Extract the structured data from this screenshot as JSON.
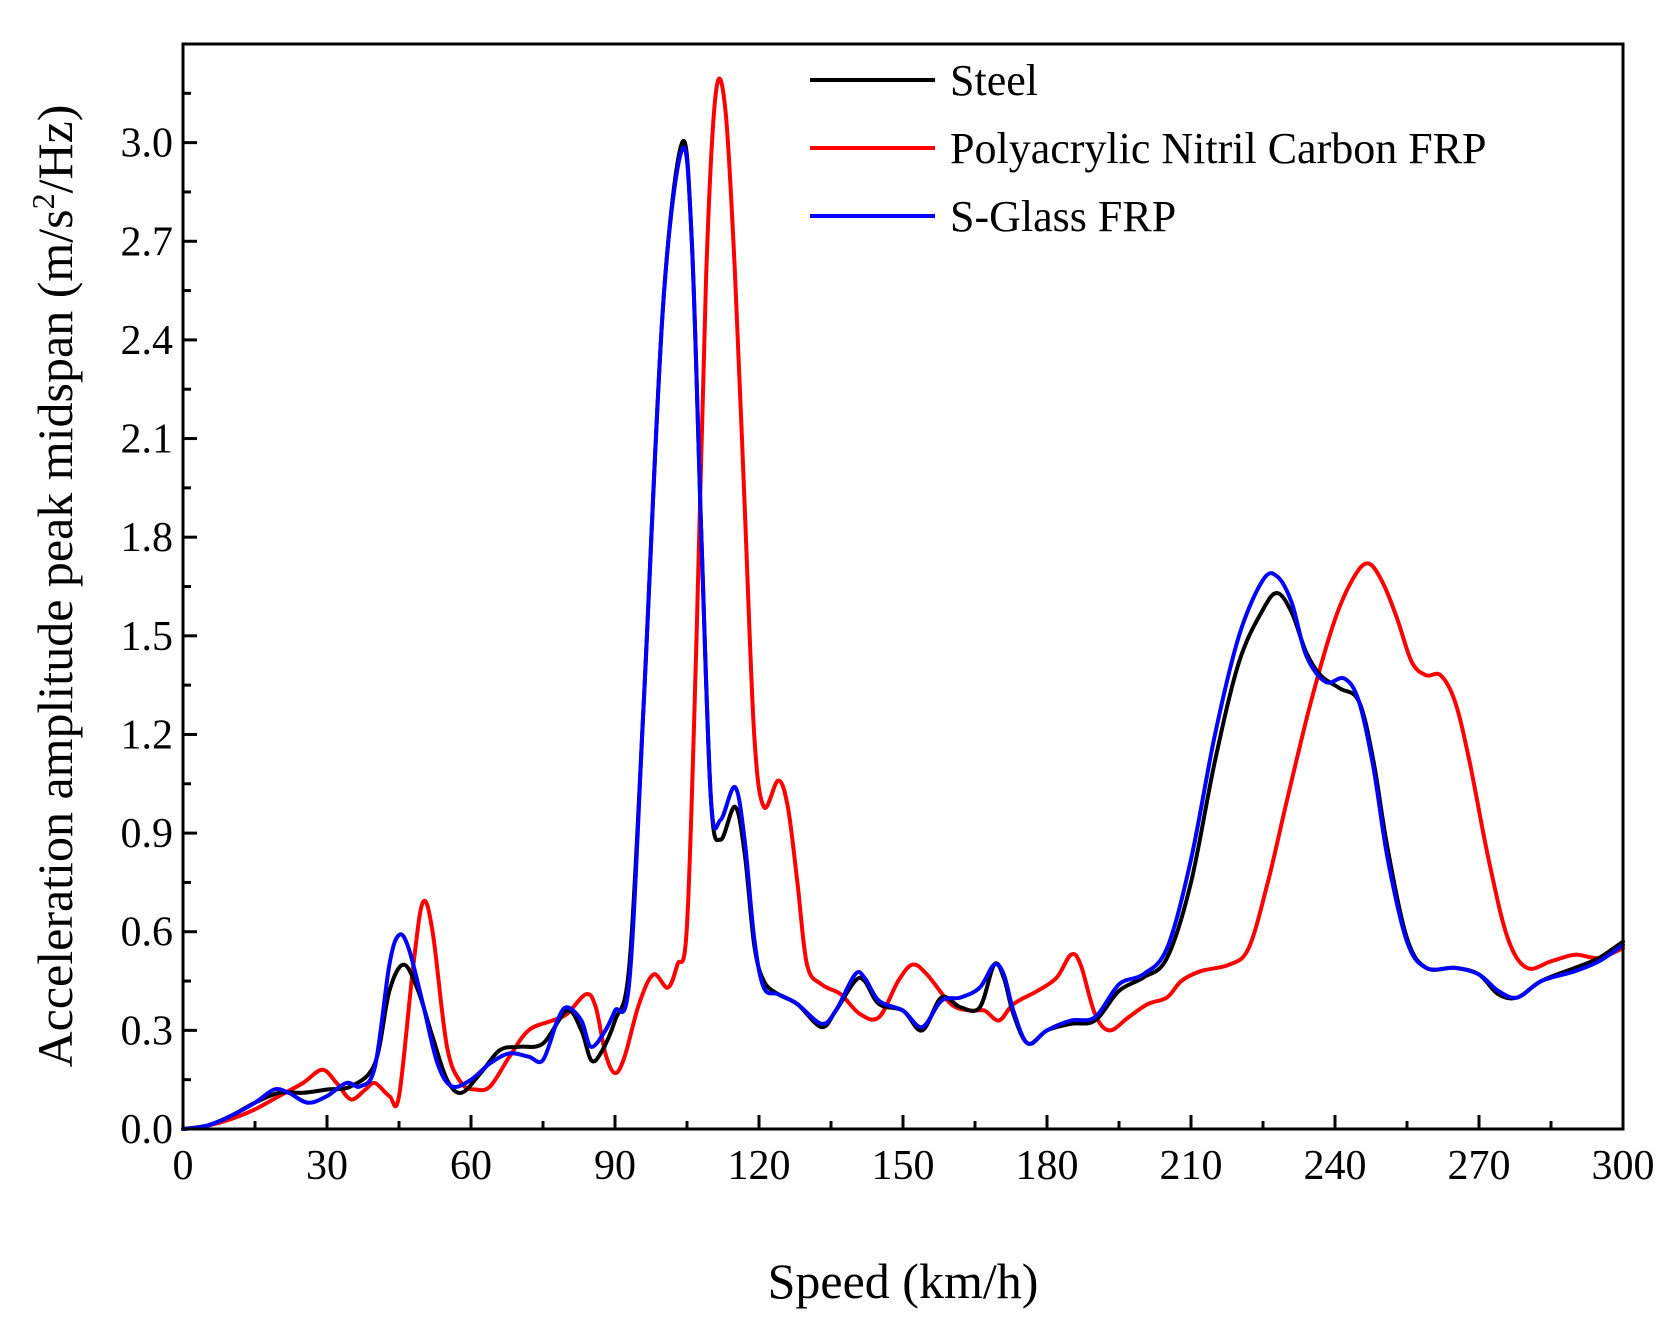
{
  "chart_data": {
    "type": "line",
    "title": "",
    "xlabel": "Speed (km/h)",
    "ylabel_parts": {
      "before": "Acceleration amplitude peak midspan (m/s",
      "sup": "2",
      "after": "/Hz)"
    },
    "xlim": [
      0,
      300
    ],
    "ylim": [
      0,
      3.3
    ],
    "x_ticks": [
      0,
      30,
      60,
      90,
      120,
      150,
      180,
      210,
      240,
      270,
      300
    ],
    "x_tick_labels": [
      "0",
      "30",
      "60",
      "90",
      "120",
      "150",
      "180",
      "210",
      "240",
      "270",
      "300"
    ],
    "y_ticks": [
      0,
      0.3,
      0.6,
      0.9,
      1.2,
      1.5,
      1.8,
      2.1,
      2.4,
      2.7,
      3.0
    ],
    "y_tick_labels": [
      "0.0",
      "0.3",
      "0.6",
      "0.9",
      "1.2",
      "1.5",
      "1.8",
      "2.1",
      "2.4",
      "2.7",
      "3.0"
    ],
    "grid": false,
    "legend_position": "top-right",
    "series": [
      {
        "name": "Steel",
        "color": "#000000",
        "points": [
          [
            0,
            0
          ],
          [
            5,
            0.01
          ],
          [
            10,
            0.04
          ],
          [
            15,
            0.08
          ],
          [
            20,
            0.11
          ],
          [
            25,
            0.11
          ],
          [
            30,
            0.12
          ],
          [
            35,
            0.13
          ],
          [
            40,
            0.2
          ],
          [
            43,
            0.42
          ],
          [
            46,
            0.5
          ],
          [
            49,
            0.42
          ],
          [
            52,
            0.28
          ],
          [
            55,
            0.15
          ],
          [
            58,
            0.11
          ],
          [
            62,
            0.17
          ],
          [
            66,
            0.24
          ],
          [
            70,
            0.25
          ],
          [
            75,
            0.26
          ],
          [
            80,
            0.36
          ],
          [
            83,
            0.3
          ],
          [
            85,
            0.21
          ],
          [
            87,
            0.23
          ],
          [
            90,
            0.33
          ],
          [
            93,
            0.5
          ],
          [
            96,
            1.3
          ],
          [
            100,
            2.5
          ],
          [
            104,
            3.0
          ],
          [
            106,
            2.7
          ],
          [
            108,
            1.8
          ],
          [
            110,
            1.0
          ],
          [
            112,
            0.88
          ],
          [
            115,
            0.98
          ],
          [
            117,
            0.84
          ],
          [
            119,
            0.56
          ],
          [
            121,
            0.45
          ],
          [
            124,
            0.41
          ],
          [
            128,
            0.38
          ],
          [
            133,
            0.31
          ],
          [
            136,
            0.36
          ],
          [
            140,
            0.45
          ],
          [
            142,
            0.45
          ],
          [
            145,
            0.38
          ],
          [
            150,
            0.36
          ],
          [
            154,
            0.3
          ],
          [
            158,
            0.4
          ],
          [
            162,
            0.37
          ],
          [
            166,
            0.37
          ],
          [
            169,
            0.5
          ],
          [
            171,
            0.46
          ],
          [
            173,
            0.35
          ],
          [
            176,
            0.26
          ],
          [
            180,
            0.3
          ],
          [
            185,
            0.32
          ],
          [
            190,
            0.33
          ],
          [
            195,
            0.42
          ],
          [
            200,
            0.46
          ],
          [
            205,
            0.52
          ],
          [
            210,
            0.75
          ],
          [
            215,
            1.12
          ],
          [
            220,
            1.42
          ],
          [
            225,
            1.58
          ],
          [
            228,
            1.63
          ],
          [
            231,
            1.57
          ],
          [
            234,
            1.45
          ],
          [
            237,
            1.38
          ],
          [
            241,
            1.34
          ],
          [
            245,
            1.3
          ],
          [
            248,
            1.12
          ],
          [
            251,
            0.85
          ],
          [
            255,
            0.58
          ],
          [
            259,
            0.49
          ],
          [
            265,
            0.49
          ],
          [
            270,
            0.47
          ],
          [
            274,
            0.41
          ],
          [
            278,
            0.4
          ],
          [
            283,
            0.45
          ],
          [
            290,
            0.49
          ],
          [
            295,
            0.52
          ],
          [
            300,
            0.57
          ]
        ]
      },
      {
        "name": "Polyacrylic Nitril Carbon FRP",
        "color": "#ff0000",
        "points": [
          [
            0,
            0
          ],
          [
            5,
            0.01
          ],
          [
            10,
            0.03
          ],
          [
            15,
            0.06
          ],
          [
            20,
            0.1
          ],
          [
            25,
            0.14
          ],
          [
            29,
            0.18
          ],
          [
            32,
            0.14
          ],
          [
            35,
            0.09
          ],
          [
            38,
            0.12
          ],
          [
            40,
            0.14
          ],
          [
            43,
            0.1
          ],
          [
            45,
            0.1
          ],
          [
            48,
            0.5
          ],
          [
            50,
            0.69
          ],
          [
            52,
            0.6
          ],
          [
            55,
            0.25
          ],
          [
            58,
            0.14
          ],
          [
            61,
            0.12
          ],
          [
            64,
            0.13
          ],
          [
            68,
            0.22
          ],
          [
            72,
            0.3
          ],
          [
            77,
            0.33
          ],
          [
            80,
            0.35
          ],
          [
            84,
            0.41
          ],
          [
            86,
            0.37
          ],
          [
            88,
            0.23
          ],
          [
            90,
            0.17
          ],
          [
            92,
            0.22
          ],
          [
            95,
            0.38
          ],
          [
            98,
            0.47
          ],
          [
            101,
            0.43
          ],
          [
            103,
            0.5
          ],
          [
            105,
            0.62
          ],
          [
            107,
            1.5
          ],
          [
            109,
            2.6
          ],
          [
            111,
            3.15
          ],
          [
            113,
            3.1
          ],
          [
            115,
            2.6
          ],
          [
            117,
            1.9
          ],
          [
            119,
            1.2
          ],
          [
            121,
            0.98
          ],
          [
            124,
            1.06
          ],
          [
            126,
            0.98
          ],
          [
            128,
            0.75
          ],
          [
            130,
            0.5
          ],
          [
            133,
            0.44
          ],
          [
            137,
            0.41
          ],
          [
            141,
            0.35
          ],
          [
            145,
            0.34
          ],
          [
            149,
            0.45
          ],
          [
            152,
            0.5
          ],
          [
            155,
            0.47
          ],
          [
            160,
            0.38
          ],
          [
            164,
            0.36
          ],
          [
            167,
            0.36
          ],
          [
            170,
            0.33
          ],
          [
            173,
            0.38
          ],
          [
            178,
            0.42
          ],
          [
            182,
            0.46
          ],
          [
            185,
            0.53
          ],
          [
            187,
            0.5
          ],
          [
            190,
            0.35
          ],
          [
            193,
            0.3
          ],
          [
            197,
            0.34
          ],
          [
            201,
            0.38
          ],
          [
            205,
            0.4
          ],
          [
            208,
            0.45
          ],
          [
            212,
            0.48
          ],
          [
            218,
            0.5
          ],
          [
            222,
            0.55
          ],
          [
            226,
            0.75
          ],
          [
            230,
            1.0
          ],
          [
            235,
            1.3
          ],
          [
            240,
            1.55
          ],
          [
            244,
            1.68
          ],
          [
            247,
            1.72
          ],
          [
            250,
            1.66
          ],
          [
            253,
            1.55
          ],
          [
            256,
            1.42
          ],
          [
            259,
            1.38
          ],
          [
            262,
            1.38
          ],
          [
            265,
            1.3
          ],
          [
            268,
            1.12
          ],
          [
            272,
            0.82
          ],
          [
            276,
            0.58
          ],
          [
            280,
            0.49
          ],
          [
            285,
            0.51
          ],
          [
            290,
            0.53
          ],
          [
            295,
            0.52
          ],
          [
            300,
            0.55
          ]
        ]
      },
      {
        "name": "S-Glass FRP",
        "color": "#0000ff",
        "points": [
          [
            0,
            0
          ],
          [
            5,
            0.01
          ],
          [
            10,
            0.04
          ],
          [
            15,
            0.08
          ],
          [
            19,
            0.12
          ],
          [
            22,
            0.11
          ],
          [
            26,
            0.08
          ],
          [
            30,
            0.1
          ],
          [
            34,
            0.14
          ],
          [
            37,
            0.13
          ],
          [
            40,
            0.19
          ],
          [
            43,
            0.5
          ],
          [
            45,
            0.59
          ],
          [
            47,
            0.55
          ],
          [
            50,
            0.38
          ],
          [
            53,
            0.2
          ],
          [
            56,
            0.13
          ],
          [
            60,
            0.15
          ],
          [
            64,
            0.2
          ],
          [
            68,
            0.23
          ],
          [
            72,
            0.22
          ],
          [
            75,
            0.21
          ],
          [
            78,
            0.33
          ],
          [
            80,
            0.37
          ],
          [
            83,
            0.33
          ],
          [
            85,
            0.25
          ],
          [
            88,
            0.3
          ],
          [
            90,
            0.36
          ],
          [
            93,
            0.45
          ],
          [
            96,
            1.3
          ],
          [
            100,
            2.5
          ],
          [
            104,
            2.98
          ],
          [
            106,
            2.7
          ],
          [
            108,
            1.8
          ],
          [
            110,
            1.0
          ],
          [
            112,
            0.94
          ],
          [
            115,
            1.04
          ],
          [
            117,
            0.88
          ],
          [
            119,
            0.58
          ],
          [
            121,
            0.43
          ],
          [
            124,
            0.41
          ],
          [
            128,
            0.38
          ],
          [
            133,
            0.32
          ],
          [
            136,
            0.36
          ],
          [
            140,
            0.47
          ],
          [
            142,
            0.46
          ],
          [
            145,
            0.39
          ],
          [
            150,
            0.36
          ],
          [
            154,
            0.31
          ],
          [
            158,
            0.39
          ],
          [
            162,
            0.4
          ],
          [
            166,
            0.43
          ],
          [
            169,
            0.5
          ],
          [
            171,
            0.47
          ],
          [
            173,
            0.36
          ],
          [
            176,
            0.26
          ],
          [
            180,
            0.3
          ],
          [
            185,
            0.33
          ],
          [
            190,
            0.34
          ],
          [
            195,
            0.44
          ],
          [
            200,
            0.47
          ],
          [
            205,
            0.55
          ],
          [
            210,
            0.82
          ],
          [
            215,
            1.2
          ],
          [
            220,
            1.5
          ],
          [
            225,
            1.67
          ],
          [
            228,
            1.68
          ],
          [
            231,
            1.6
          ],
          [
            234,
            1.44
          ],
          [
            238,
            1.36
          ],
          [
            242,
            1.37
          ],
          [
            245,
            1.3
          ],
          [
            248,
            1.1
          ],
          [
            251,
            0.82
          ],
          [
            255,
            0.57
          ],
          [
            259,
            0.49
          ],
          [
            265,
            0.49
          ],
          [
            270,
            0.47
          ],
          [
            274,
            0.42
          ],
          [
            278,
            0.4
          ],
          [
            283,
            0.45
          ],
          [
            290,
            0.48
          ],
          [
            295,
            0.51
          ],
          [
            300,
            0.56
          ]
        ]
      }
    ]
  }
}
